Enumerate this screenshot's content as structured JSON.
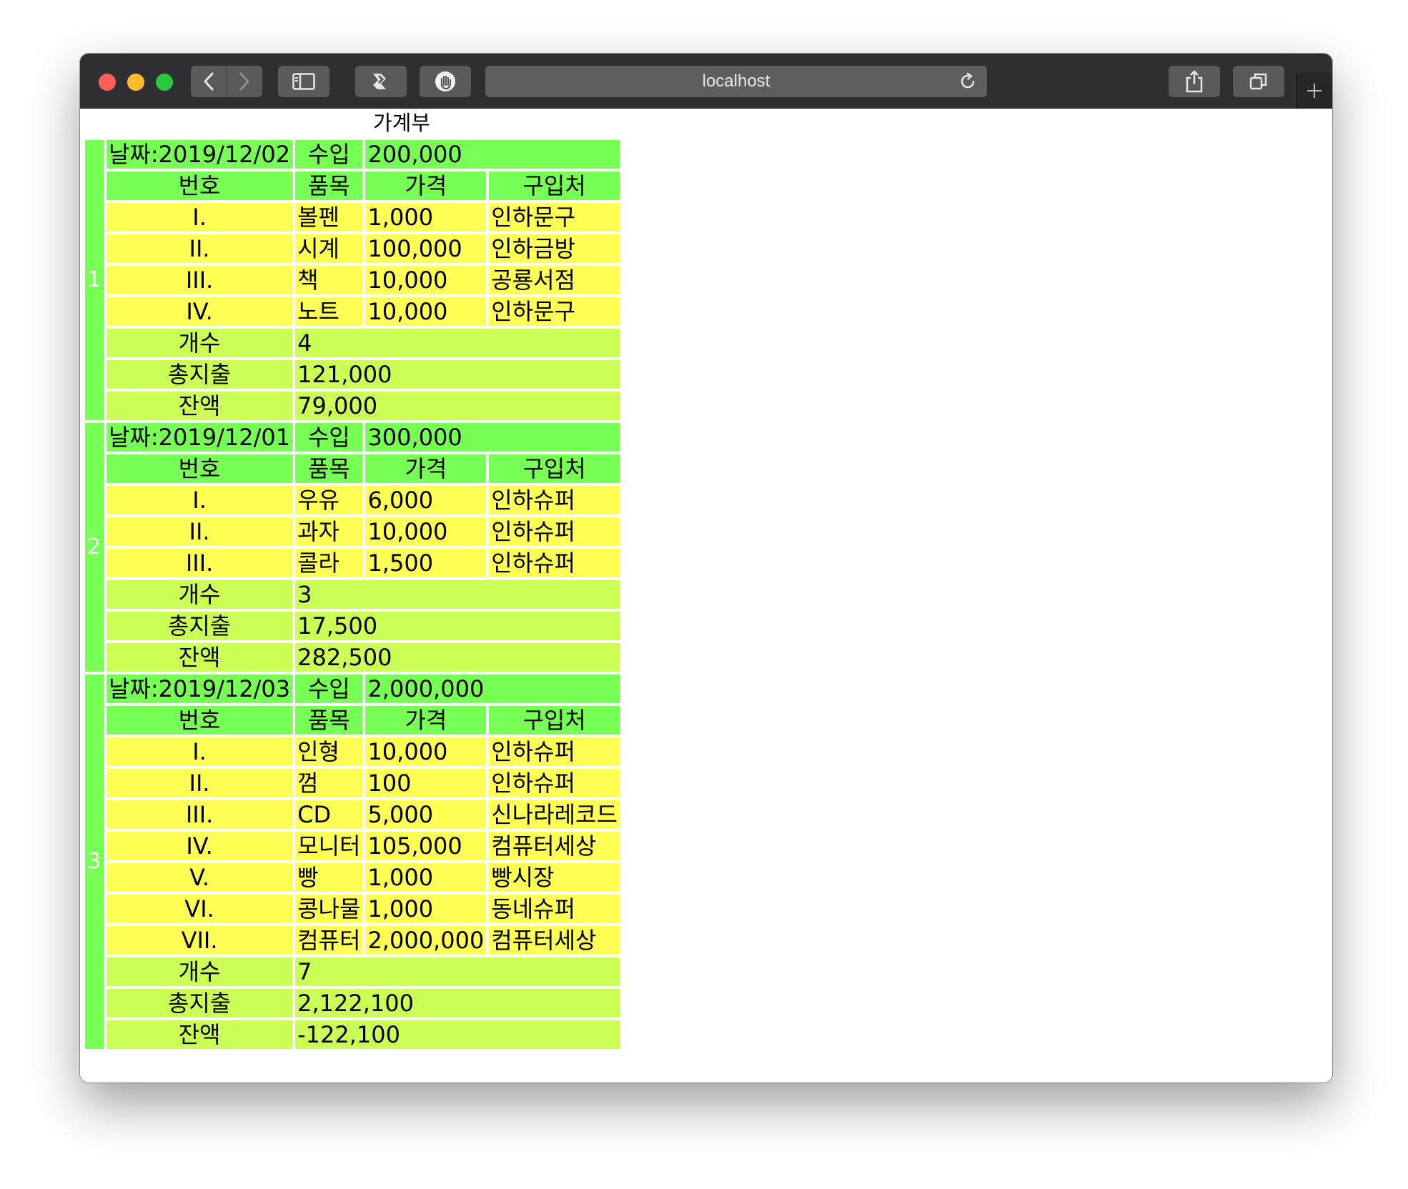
{
  "browser": {
    "url": "localhost"
  },
  "page": {
    "title": "가계부",
    "columns": {
      "number": "번호",
      "item": "품목",
      "price": "가격",
      "shop": "구입처"
    },
    "income_label": "수입",
    "summary_labels": {
      "count": "개수",
      "total_expense": "총지출",
      "balance": "잔액"
    }
  },
  "groups": [
    {
      "index": "1",
      "date": "날짜:2019/12/02",
      "income": "200,000",
      "items": [
        {
          "no": "I.",
          "item": "볼펜",
          "price": "1,000",
          "shop": "인하문구"
        },
        {
          "no": "II.",
          "item": "시계",
          "price": "100,000",
          "shop": "인하금방"
        },
        {
          "no": "III.",
          "item": "책",
          "price": "10,000",
          "shop": "공룡서점"
        },
        {
          "no": "IV.",
          "item": "노트",
          "price": "10,000",
          "shop": "인하문구"
        }
      ],
      "count": "4",
      "total_expense": "121,000",
      "balance": "79,000"
    },
    {
      "index": "2",
      "date": "날짜:2019/12/01",
      "income": "300,000",
      "items": [
        {
          "no": "I.",
          "item": "우유",
          "price": "6,000",
          "shop": "인하슈퍼"
        },
        {
          "no": "II.",
          "item": "과자",
          "price": "10,000",
          "shop": "인하슈퍼"
        },
        {
          "no": "III.",
          "item": "콜라",
          "price": "1,500",
          "shop": "인하슈퍼"
        }
      ],
      "count": "3",
      "total_expense": "17,500",
      "balance": "282,500"
    },
    {
      "index": "3",
      "date": "날짜:2019/12/03",
      "income": "2,000,000",
      "items": [
        {
          "no": "I.",
          "item": "인형",
          "price": "10,000",
          "shop": "인하슈퍼"
        },
        {
          "no": "II.",
          "item": "껌",
          "price": "100",
          "shop": "인하슈퍼"
        },
        {
          "no": "III.",
          "item": "CD",
          "price": "5,000",
          "shop": "신나라레코드"
        },
        {
          "no": "IV.",
          "item": "모니터",
          "price": "105,000",
          "shop": "컴퓨터세상"
        },
        {
          "no": "V.",
          "item": "빵",
          "price": "1,000",
          "shop": "빵시장"
        },
        {
          "no": "VI.",
          "item": "콩나물",
          "price": "1,000",
          "shop": "동네슈퍼"
        },
        {
          "no": "VII.",
          "item": "컴퓨터",
          "price": "2,000,000",
          "shop": "컴퓨터세상"
        }
      ],
      "count": "7",
      "total_expense": "2,122,100",
      "balance": "-122,100"
    }
  ],
  "colors": {
    "index_column": "#0018ff",
    "header_row": "#77ff55",
    "item_row": "#ffff55",
    "summary_row": "#ccff55"
  },
  "icons": [
    "back-icon",
    "forward-icon",
    "sidebar-icon",
    "extension-icon",
    "privacy-hand-icon",
    "reload-icon",
    "share-icon",
    "tabs-icon",
    "plus-icon"
  ]
}
